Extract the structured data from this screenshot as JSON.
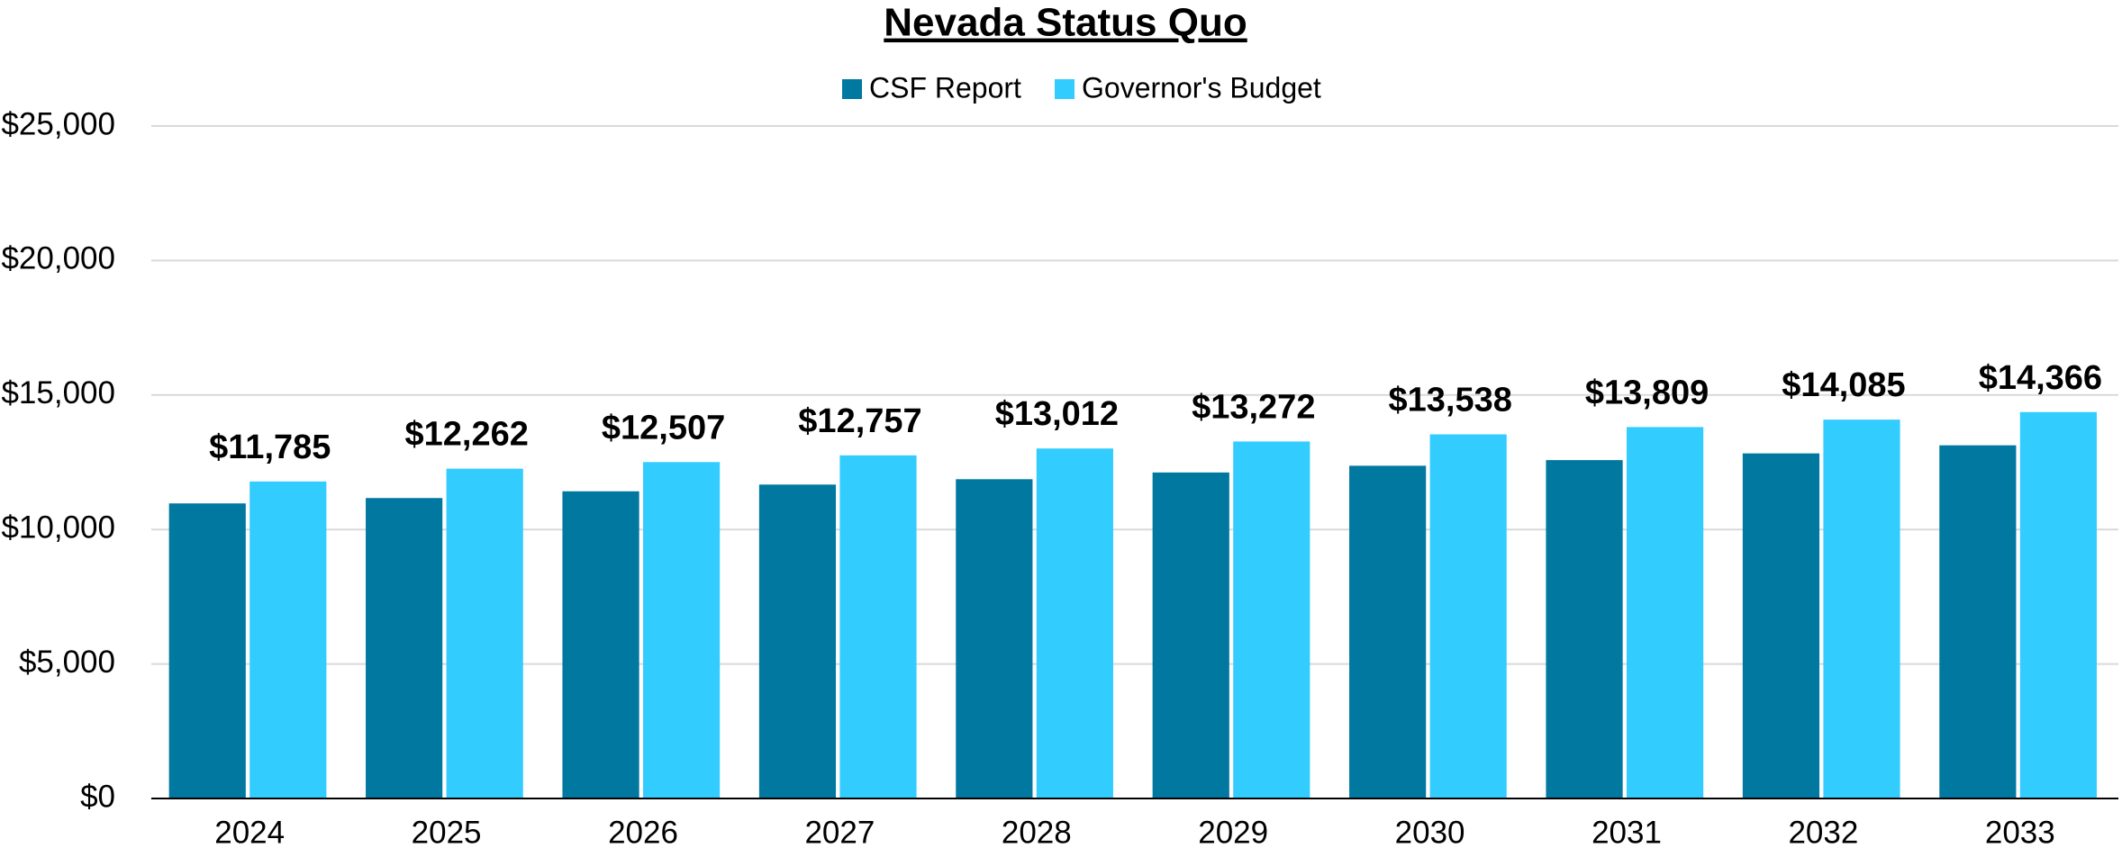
{
  "chart_data": {
    "type": "bar",
    "title": "Nevada Status Quo",
    "categories": [
      "2024",
      "2025",
      "2026",
      "2027",
      "2028",
      "2029",
      "2030",
      "2031",
      "2032",
      "2033"
    ],
    "series": [
      {
        "name": "CSF Report",
        "color": "#0078a0",
        "values": [
          10970,
          11170,
          11420,
          11670,
          11870,
          12120,
          12370,
          12580,
          12830,
          13130
        ]
      },
      {
        "name": "Governor's Budget",
        "color": "#33ccff",
        "values": [
          11785,
          12262,
          12507,
          12757,
          13012,
          13272,
          13538,
          13809,
          14085,
          14366
        ],
        "value_labels": [
          "$11,785",
          "$12,262",
          "$12,507",
          "$12,757",
          "$13,012",
          "$13,272",
          "$13,538",
          "$13,809",
          "$14,085",
          "$14,366"
        ]
      }
    ],
    "ylim": [
      0,
      25000
    ],
    "yticks": [
      {
        "value": 0,
        "label": "$0"
      },
      {
        "value": 5000,
        "label": "$5,000"
      },
      {
        "value": 10000,
        "label": "$10,000"
      },
      {
        "value": 15000,
        "label": "$15,000"
      },
      {
        "value": 20000,
        "label": "$20,000"
      },
      {
        "value": 25000,
        "label": "$25,000"
      }
    ],
    "grid": true,
    "legend": "top"
  }
}
